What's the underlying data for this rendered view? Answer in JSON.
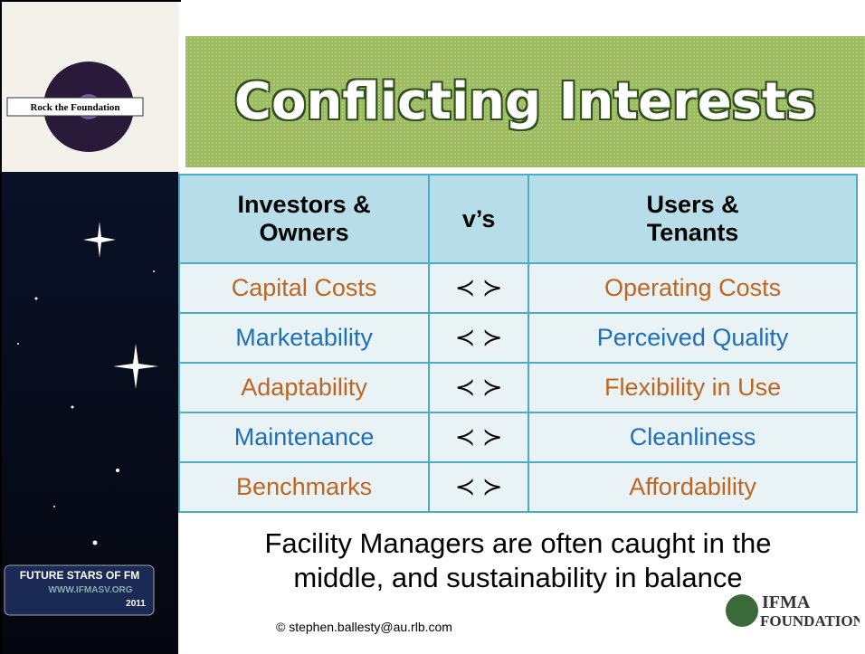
{
  "title": "Conflicting Interests",
  "logo": {
    "text": "Rock the Foundation"
  },
  "table": {
    "header": [
      [
        "Investors &",
        "Owners"
      ],
      [
        "v’s"
      ],
      [
        "Users &",
        "Tenants"
      ]
    ],
    "rows": [
      [
        "Capital Costs",
        "≺ ≻",
        "Operating Costs"
      ],
      [
        "Marketability",
        "≺ ≻",
        "Perceived Quality"
      ],
      [
        "Adaptability",
        "≺ ≻",
        "Flexibility in Use"
      ],
      [
        "Maintenance",
        "≺ ≻",
        "Cleanliness"
      ],
      [
        "Benchmarks",
        "≺ ≻",
        "Affordability"
      ]
    ]
  },
  "footer": {
    "lines": [
      "Facility Managers are often caught in the",
      "middle, and sustainability in balance"
    ],
    "email": "© stephen.ballesty@au.rlb.com"
  },
  "badge": {
    "line1": "FUTURE STARS OF FM",
    "line2": "WWW.IFMASV.ORG",
    "year": "2011"
  },
  "sponsor": {
    "line1": "IFMA",
    "line2": "FOUNDATION"
  }
}
